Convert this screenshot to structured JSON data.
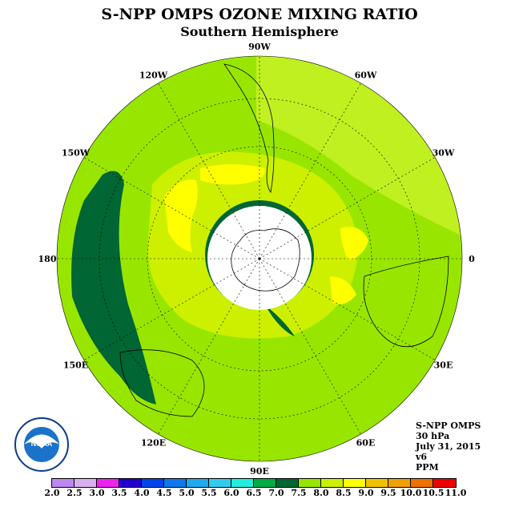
{
  "header": {
    "title": "S-NPP OMPS OZONE MIXING RATIO",
    "subtitle": "Southern Hemisphere"
  },
  "map": {
    "projection": "polar-stereographic-south",
    "longitude_labels": [
      "90W",
      "60W",
      "30W",
      "0",
      "30E",
      "60E",
      "90E",
      "120E",
      "150E",
      "180",
      "150W",
      "120W"
    ],
    "colors": {
      "ocean_base": "#98e600",
      "outer_ring": "#c0f020",
      "inner_band": "#ccf000",
      "high_zone": "#ffff00",
      "low_zone": "#006633",
      "polar_cap": "#ffffff"
    }
  },
  "info": {
    "lines": [
      "S-NPP OMPS",
      "30 hPa",
      "July 31, 2015",
      "v6",
      "PPM"
    ]
  },
  "logo": {
    "text": "NOAA",
    "name": "noaa-logo"
  },
  "colorbar": {
    "ticks": [
      "2.0",
      "2.5",
      "3.0",
      "3.5",
      "4.0",
      "4.5",
      "5.0",
      "5.5",
      "6.0",
      "6.5",
      "7.0",
      "7.5",
      "8.0",
      "8.5",
      "9.0",
      "9.5",
      "10.0",
      "10.5",
      "11.0"
    ],
    "colors": [
      "#bb88ee",
      "#d8b0f0",
      "#ee22ee",
      "#2200cc",
      "#0044ee",
      "#1177ee",
      "#22aaee",
      "#33ccee",
      "#22eedd",
      "#00aa44",
      "#006633",
      "#98e600",
      "#ccf000",
      "#ffff00",
      "#f0c000",
      "#f0a000",
      "#f07000",
      "#ee0000",
      "#884422"
    ]
  }
}
